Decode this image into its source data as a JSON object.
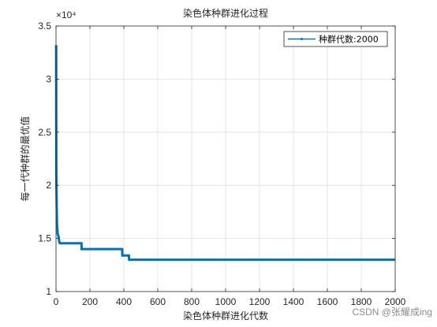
{
  "chart_data": {
    "type": "line",
    "title": "染色体种群进化过程",
    "xlabel": "染色体种群进化代数",
    "ylabel": "每一代种群的最优值",
    "xlim": [
      0,
      2000
    ],
    "ylim": [
      10000,
      35000
    ],
    "y_exponent_label": "×10⁴",
    "x_ticks": [
      0,
      200,
      400,
      600,
      800,
      1000,
      1200,
      1400,
      1600,
      1800,
      2000
    ],
    "y_ticks": [
      10000,
      15000,
      20000,
      25000,
      30000,
      35000
    ],
    "x_tick_labels": [
      "0",
      "200",
      "400",
      "600",
      "800",
      "1000",
      "1200",
      "1400",
      "1600",
      "1800",
      "2000"
    ],
    "y_tick_labels": [
      "1",
      "1.5",
      "2",
      "2.5",
      "3",
      "3.5"
    ],
    "grid": true,
    "legend_position": "top-right",
    "series": [
      {
        "name": "种群代数:2000",
        "color": "#0072bd",
        "x": [
          1,
          2,
          4,
          6,
          10,
          15,
          20,
          25,
          150,
          151,
          390,
          391,
          430,
          431,
          2000
        ],
        "y": [
          33200,
          21000,
          18000,
          16300,
          15400,
          15200,
          14600,
          14550,
          14550,
          14000,
          14000,
          13400,
          13400,
          13000,
          13000
        ]
      }
    ]
  },
  "watermark": "CSDN @张耀成ing"
}
